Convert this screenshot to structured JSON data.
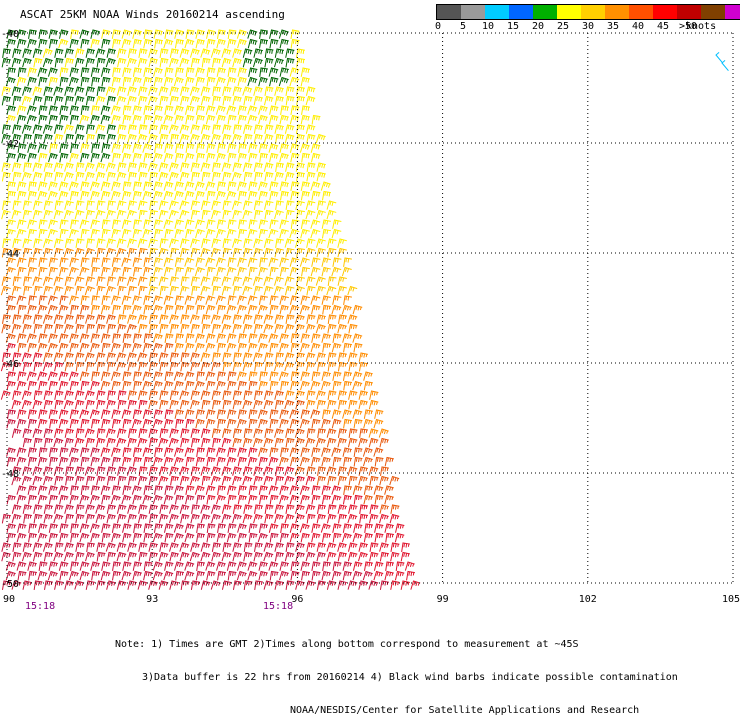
{
  "title": "ASCAT 25KM NOAA Winds 20160214 ascending",
  "legend": {
    "colors": [
      "#555555",
      "#9a9a9a",
      "#00ccff",
      "#0066ff",
      "#00b000",
      "#ffff00",
      "#ffd000",
      "#ff9000",
      "#ff5000",
      "#ff0000",
      "#c00000",
      "#804000",
      "#d000d0",
      "#800080"
    ],
    "labels": [
      "0",
      "5",
      "10",
      "15",
      "20",
      "25",
      "30",
      "35",
      "40",
      "45",
      ">50"
    ],
    "unit": "knots"
  },
  "axes": {
    "y_labels": [
      "-40",
      "-42",
      "-44",
      "-46",
      "-48",
      "-50"
    ],
    "x_labels": [
      "90",
      "93",
      "96",
      "99",
      "102",
      "105"
    ],
    "lat_range": [
      -50,
      -40
    ],
    "lon_range": [
      90,
      105
    ]
  },
  "times": [
    "15:18",
    "15:18"
  ],
  "notes": {
    "line1": "Note: 1) Times are GMT 2)Times along bottom correspond to measurement at ~45S",
    "line2": "3)Data buffer is 22 hrs from 20160214 4) Black wind barbs indicate possible contamination",
    "line3": "NOAA/NESDIS/Center for Satellite Applications and Research"
  },
  "wind_colors": {
    "green": "#006400",
    "yellow": "#ffee00",
    "gold": "#ffc800",
    "orange": "#ff8c00",
    "darkorange": "#e8580c",
    "red": "#e0142d",
    "crimson": "#c8143c",
    "cyan": "#00bfff"
  }
}
